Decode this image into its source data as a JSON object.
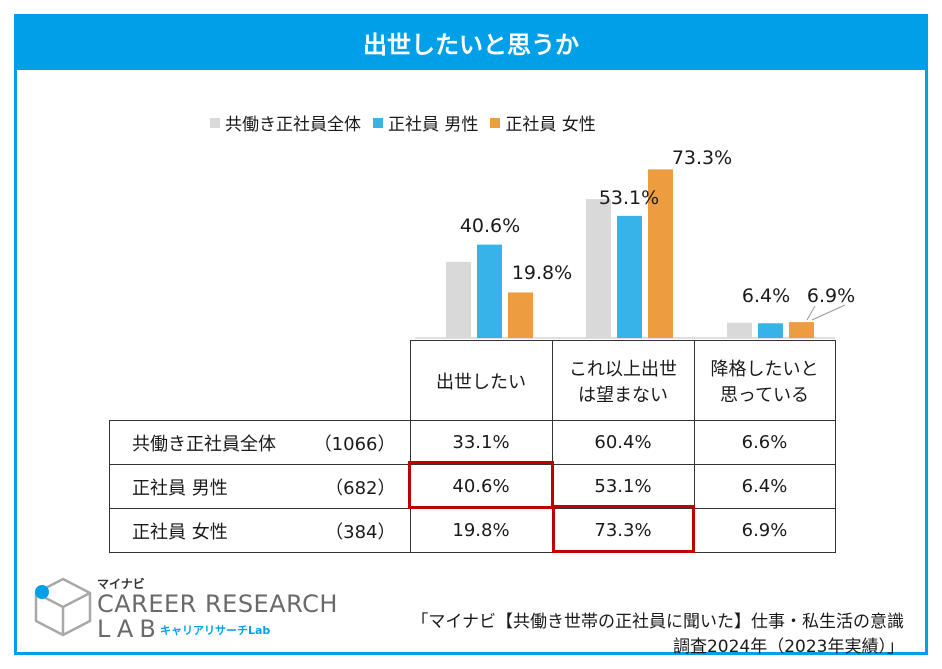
{
  "title": "出世したいと思うか",
  "colors": {
    "accent": "#00a0e9",
    "all": "#d9d9d9",
    "male": "#38b3ea",
    "female": "#ed9c40",
    "highlight": "#c00000"
  },
  "chart_data": {
    "type": "bar",
    "categories": [
      "出世したい",
      "これ以上出世は望まない",
      "降格したいと思っている"
    ],
    "series": [
      {
        "name": "共働き正社員全体",
        "values": [
          33.1,
          60.4,
          6.6
        ]
      },
      {
        "name": "正社員 男性",
        "values": [
          40.6,
          53.1,
          6.4
        ]
      },
      {
        "name": "正社員 女性",
        "values": [
          19.8,
          73.3,
          6.9
        ]
      }
    ],
    "labeled": {
      "c0_male": "40.6%",
      "c0_female": "19.8%",
      "c1_male": "53.1%",
      "c1_female": "73.3%",
      "c2_male": "6.4%",
      "c2_female": "6.9%"
    },
    "ylim": [
      0,
      80
    ]
  },
  "table": {
    "headers": [
      "出世したい",
      "これ以上出世",
      "は望まない",
      "降格したいと",
      "思っている"
    ],
    "rows": [
      {
        "label": "共働き正社員全体",
        "n": "（1066）",
        "cells": [
          "33.1%",
          "60.4%",
          "6.6%"
        ]
      },
      {
        "label": "正社員 男性",
        "n": "（682）",
        "cells": [
          "40.6%",
          "53.1%",
          "6.4%"
        ]
      },
      {
        "label": "正社員 女性",
        "n": "（384）",
        "cells": [
          "19.8%",
          "73.3%",
          "6.9%"
        ]
      }
    ]
  },
  "brand": {
    "small": "マイナビ",
    "big": "CAREER RESEARCH",
    "lab": "LAB",
    "kana": "キャリアリサーチLab"
  },
  "source": {
    "line1": "「マイナビ【共働き世帯の正社員に聞いた】仕事・私生活の意識",
    "line2": "調査2024年（2023年実績）」"
  }
}
